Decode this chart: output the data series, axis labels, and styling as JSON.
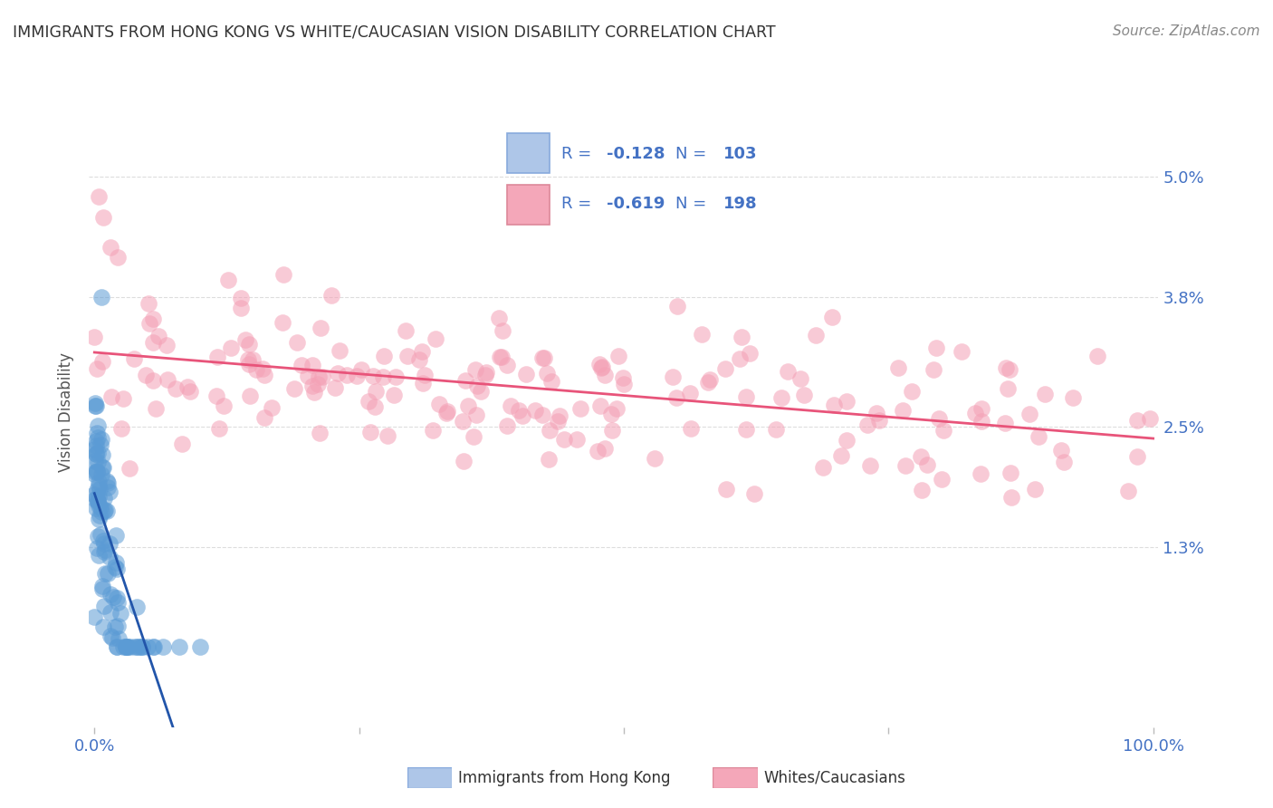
{
  "title": "IMMIGRANTS FROM HONG KONG VS WHITE/CAUCASIAN VISION DISABILITY CORRELATION CHART",
  "source": "Source: ZipAtlas.com",
  "ylabel": "Vision Disability",
  "ytick_labels": [
    "1.3%",
    "2.5%",
    "3.8%",
    "5.0%"
  ],
  "ytick_values": [
    0.013,
    0.025,
    0.038,
    0.05
  ],
  "xlim": [
    -0.005,
    1.005
  ],
  "ylim": [
    -0.005,
    0.058
  ],
  "blue_scatter_color": "#5b9bd5",
  "pink_scatter_color": "#f4a0b5",
  "blue_line_color": "#2255aa",
  "pink_line_color": "#e8547a",
  "dashed_line_color": "#aaaacc",
  "background_color": "#ffffff",
  "grid_color": "#dddddd",
  "title_color": "#333333",
  "axis_label_color": "#4472c4",
  "legend_text_color": "#4472c4",
  "legend_R_blue": "-0.128",
  "legend_N_blue": "103",
  "legend_R_pink": "-0.619",
  "legend_N_pink": "198",
  "legend_patch_blue": "#aec6e8",
  "legend_patch_pink": "#f4a7b9",
  "bottom_legend_label_blue": "Immigrants from Hong Kong",
  "bottom_legend_label_pink": "Whites/Caucasians"
}
